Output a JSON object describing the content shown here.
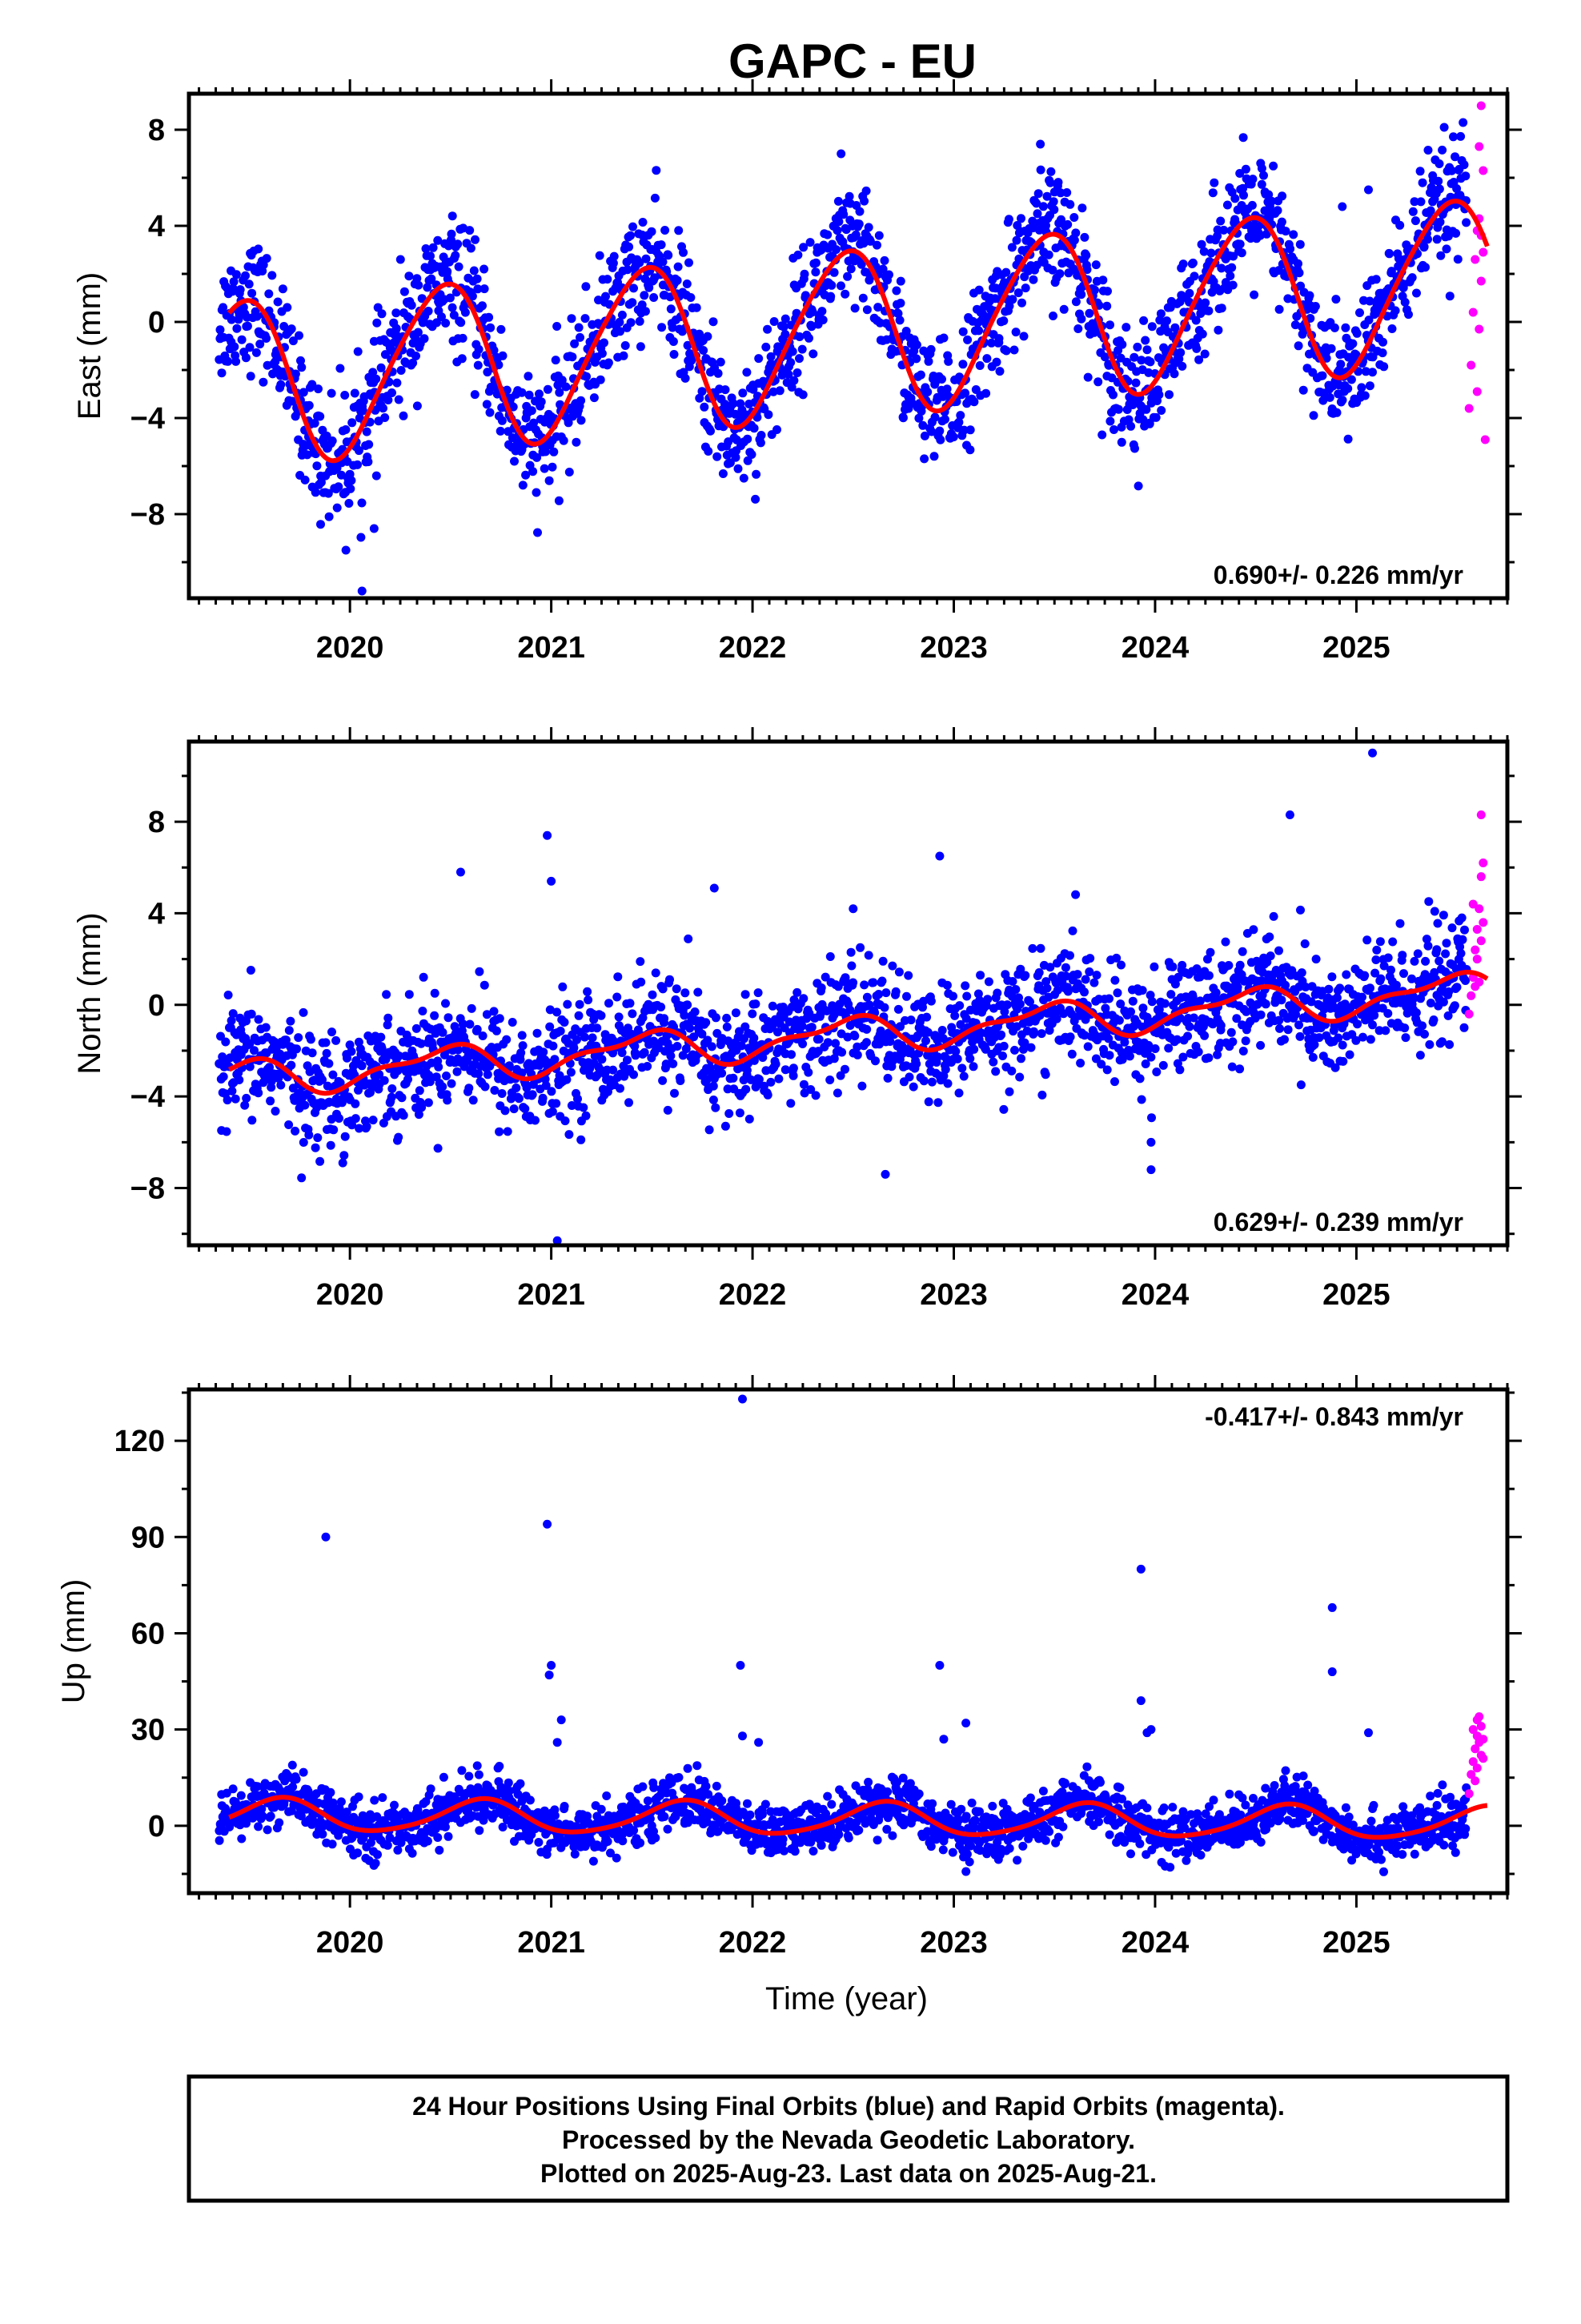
{
  "title": "GAPC - EU",
  "colors": {
    "final_orbits": "#0000ff",
    "rapid_orbits": "#ff00ff",
    "model_fit": "#ff0000",
    "frame": "#000000"
  },
  "footer": {
    "lines": [
      "24 Hour Positions Using Final Orbits (blue) and Rapid Orbits (magenta).",
      "Processed by the Nevada Geodetic Laboratory.",
      "Plotted on 2025-Aug-23. Last data on 2025-Aug-21."
    ]
  },
  "chart_data": [
    {
      "type": "scatter",
      "component": "East",
      "xlabel": "",
      "ylabel": "East (mm)",
      "xlim": [
        2019.2,
        2025.75
      ],
      "ylim": [
        -11.5,
        9.5
      ],
      "yticks": [
        -8,
        -4,
        0,
        4,
        8
      ],
      "yticklabels": [
        "−8",
        "−4",
        "0",
        "4",
        "8"
      ],
      "xticks": [
        2020,
        2021,
        2022,
        2023,
        2024,
        2025
      ],
      "xticklabels": [
        "2020",
        "2021",
        "2022",
        "2023",
        "2024",
        "2025"
      ],
      "rate_text": "0.690+/- 0.226 mm/yr",
      "rate_position": "bottom-right",
      "model": {
        "offset": -0.4,
        "trend": 0.69,
        "start": 2019.4,
        "end": 2025.65,
        "annual_amp": 3.4,
        "annual_peak": 2019.45,
        "semi_amp": 0.4,
        "semi_peak": 2019.6
      },
      "final_scatter": {
        "start": 2019.35,
        "end": 2025.55,
        "points_per_year": 330,
        "noise_sd": 1.3
      },
      "rapid_points": {
        "x": [
          2025.56,
          2025.57,
          2025.58,
          2025.59,
          2025.6,
          2025.61,
          2025.62,
          2025.63,
          2025.64,
          2025.6,
          2025.61,
          2025.62,
          2025.63,
          2025.62,
          2025.61
        ],
        "y": [
          -3.6,
          -1.8,
          0.4,
          2.6,
          3.8,
          7.3,
          9.0,
          6.3,
          -4.9,
          -2.9,
          -0.3,
          1.7,
          2.9,
          3.6,
          4.3
        ]
      },
      "outliers": {
        "x": [
          2019.98,
          2020.06,
          2020.12,
          2022.44,
          2023.43,
          2024.93,
          2025.06,
          2025.53
        ],
        "y": [
          -9.5,
          -11.2,
          -8.6,
          7.0,
          7.4,
          4.8,
          5.5,
          8.3
        ]
      }
    },
    {
      "type": "scatter",
      "component": "North",
      "xlabel": "",
      "ylabel": "North (mm)",
      "xlim": [
        2019.2,
        2025.75
      ],
      "ylim": [
        -10.5,
        11.5
      ],
      "yticks": [
        -8,
        -4,
        0,
        4,
        8
      ],
      "yticklabels": [
        "−8",
        "−4",
        "0",
        "4",
        "8"
      ],
      "xticks": [
        2020,
        2021,
        2022,
        2023,
        2024,
        2025
      ],
      "xticklabels": [
        "2020",
        "2021",
        "2022",
        "2023",
        "2024",
        "2025"
      ],
      "rate_text": "0.629+/- 0.239 mm/yr",
      "rate_position": "bottom-right",
      "model": {
        "offset": -1.3,
        "trend": 0.629,
        "start": 2019.4,
        "end": 2025.65,
        "annual_amp": 0.7,
        "annual_peak": 2019.45,
        "semi_amp": 0.3,
        "semi_peak": 2019.6
      },
      "final_scatter": {
        "start": 2019.35,
        "end": 2025.55,
        "points_per_year": 330,
        "noise_sd": 1.25
      },
      "rapid_points": {
        "x": [
          2025.56,
          2025.57,
          2025.58,
          2025.59,
          2025.6,
          2025.61,
          2025.62,
          2025.63,
          2025.62,
          2025.6,
          2025.61,
          2025.63,
          2025.62,
          2025.59,
          2025.58
        ],
        "y": [
          -0.4,
          0.4,
          1.2,
          2.4,
          3.3,
          4.2,
          5.6,
          6.2,
          8.3,
          2.0,
          1.0,
          3.6,
          2.8,
          0.8,
          4.4
        ]
      },
      "outliers": {
        "x": [
          2020.98,
          2021.0,
          2021.03,
          2020.55,
          2022.5,
          2022.93,
          2025.08,
          2024.67,
          2021.81,
          2023.98,
          2023.98,
          2022.66
        ],
        "y": [
          7.4,
          5.4,
          -10.3,
          5.8,
          4.2,
          6.5,
          11.0,
          8.3,
          5.1,
          -6.0,
          -7.2,
          -7.4
        ]
      }
    },
    {
      "type": "scatter",
      "component": "Up",
      "xlabel": "Time (year)",
      "ylabel": "Up (mm)",
      "xlim": [
        2019.2,
        2025.75
      ],
      "ylim": [
        -21,
        136
      ],
      "yticks": [
        0,
        30,
        60,
        90,
        120
      ],
      "yticklabels": [
        "0",
        "30",
        "60",
        "90",
        "120"
      ],
      "xticks": [
        2020,
        2021,
        2022,
        2023,
        2024,
        2025
      ],
      "xticklabels": [
        "2020",
        "2021",
        "2022",
        "2023",
        "2024",
        "2025"
      ],
      "rate_text": "-0.417+/- 0.843 mm/yr",
      "rate_position": "top-right",
      "model": {
        "offset": 2.0,
        "trend": -0.417,
        "start": 2019.4,
        "end": 2025.65,
        "annual_amp": 5.0,
        "annual_peak": 2019.65,
        "semi_amp": 0.8,
        "semi_peak": 2019.7
      },
      "final_scatter": {
        "start": 2019.35,
        "end": 2025.55,
        "points_per_year": 330,
        "noise_sd": 4.0
      },
      "rapid_points": {
        "x": [
          2025.56,
          2025.57,
          2025.58,
          2025.59,
          2025.6,
          2025.61,
          2025.62,
          2025.63,
          2025.62,
          2025.6,
          2025.61,
          2025.58,
          2025.59,
          2025.63,
          2025.6
        ],
        "y": [
          10,
          16,
          20,
          24,
          28,
          34,
          31,
          27,
          22,
          18,
          26,
          30,
          14,
          21,
          33
        ]
      },
      "outliers": {
        "x": [
          2019.88,
          2020.98,
          2020.99,
          2021.0,
          2021.05,
          2021.03,
          2021.95,
          2021.94,
          2021.95,
          2022.03,
          2022.93,
          2022.95,
          2023.06,
          2023.93,
          2023.93,
          2023.98,
          2023.96,
          2024.88,
          2024.88,
          2025.06
        ],
        "y": [
          90,
          94,
          47,
          50,
          33,
          26,
          133,
          50,
          28,
          26,
          50,
          27,
          32,
          80,
          39,
          30,
          29,
          68,
          48,
          29
        ]
      }
    }
  ]
}
